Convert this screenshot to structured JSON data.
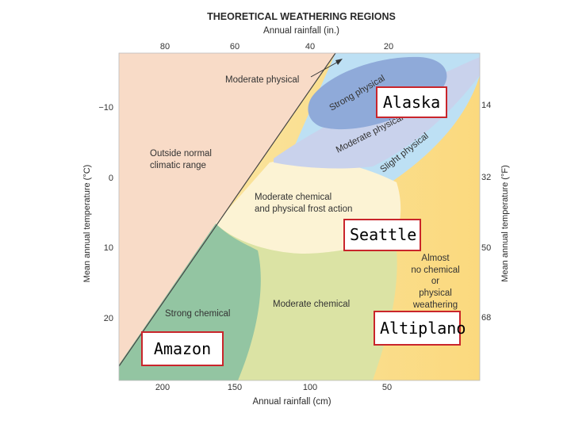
{
  "title": "THEORETICAL WEATHERING REGIONS",
  "top_axis": {
    "label": "Annual rainfall (in.)",
    "ticks": [
      "80",
      "60",
      "40",
      "20"
    ]
  },
  "bottom_axis": {
    "label": "Annual rainfall (cm)",
    "ticks": [
      "200",
      "150",
      "100",
      "50"
    ]
  },
  "left_axis": {
    "label": "Mean annual temperature (°C)",
    "ticks": [
      "−10",
      "0",
      "10",
      "20"
    ]
  },
  "right_axis": {
    "label": "Mean annual temperature (°F)",
    "ticks": [
      "14",
      "32",
      "50",
      "68"
    ]
  },
  "regions": {
    "moderate_physical": "Moderate physical",
    "strong_physical": "Strong physical",
    "moderate_physical_band": "Moderate physical",
    "slight_physical": "Slight physical",
    "outside_1": "Outside normal",
    "outside_2": "climatic range",
    "mod_chem_frost_1": "Moderate chemical",
    "mod_chem_frost_2": "and physical frost action",
    "strong_chemical": "Strong chemical",
    "moderate_chemical": "Moderate chemical",
    "almost_1": "Almost",
    "almost_2": "no chemical",
    "almost_3": "or",
    "almost_4": "physical",
    "almost_5": "weathering"
  },
  "callouts": {
    "alaska": "Alaska",
    "seattle": "Seattle",
    "amazon": "Amazon",
    "altiplano": "Altiplano"
  },
  "colors": {
    "outside": "#f7d9c4",
    "strong_physical": "#8fa9d8",
    "moderate_physical": "#c5d0ea",
    "slight_physical": "#bfe0f3",
    "frost": "#fcf3d2",
    "strong_chemical": "#92c4a0",
    "moderate_chemical": "#d9e2a2",
    "almost_none": "#fbe6a0",
    "callout_border": "#c9252b"
  }
}
